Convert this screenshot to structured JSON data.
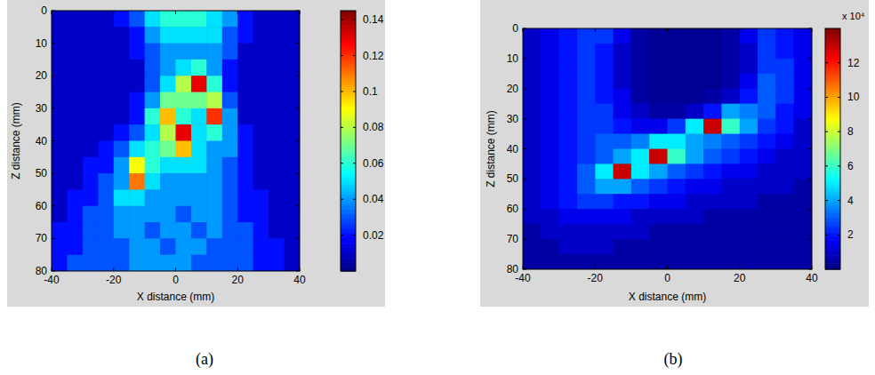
{
  "chart_data": [
    {
      "type": "heatmap",
      "title": "(a)",
      "xlabel": "X distance (mm)",
      "ylabel": "Z distance (mm)",
      "x": [
        -37.5,
        -32.5,
        -27.5,
        -22.5,
        -17.5,
        -12.5,
        -7.5,
        -2.5,
        2.5,
        7.5,
        12.5,
        17.5,
        22.5,
        27.5,
        32.5,
        37.5
      ],
      "y": [
        2.5,
        7.5,
        12.5,
        17.5,
        22.5,
        27.5,
        32.5,
        37.5,
        42.5,
        47.5,
        52.5,
        57.5,
        62.5,
        67.5,
        72.5,
        77.5
      ],
      "values": [
        [
          0.01,
          0.01,
          0.01,
          0.01,
          0.02,
          0.03,
          0.05,
          0.06,
          0.06,
          0.06,
          0.05,
          0.04,
          0.02,
          0.01,
          0.01,
          0.01
        ],
        [
          0.01,
          0.01,
          0.01,
          0.01,
          0.01,
          0.02,
          0.04,
          0.05,
          0.05,
          0.05,
          0.05,
          0.03,
          0.02,
          0.01,
          0.01,
          0.01
        ],
        [
          0.01,
          0.01,
          0.01,
          0.01,
          0.01,
          0.02,
          0.03,
          0.04,
          0.04,
          0.04,
          0.04,
          0.03,
          0.01,
          0.01,
          0.01,
          0.01
        ],
        [
          0.01,
          0.01,
          0.01,
          0.01,
          0.01,
          0.01,
          0.03,
          0.04,
          0.05,
          0.06,
          0.04,
          0.02,
          0.01,
          0.01,
          0.01,
          0.01
        ],
        [
          0.01,
          0.01,
          0.01,
          0.01,
          0.01,
          0.01,
          0.03,
          0.05,
          0.08,
          0.13,
          0.06,
          0.02,
          0.01,
          0.01,
          0.01,
          0.01
        ],
        [
          0.01,
          0.01,
          0.01,
          0.01,
          0.01,
          0.02,
          0.04,
          0.07,
          0.07,
          0.07,
          0.08,
          0.03,
          0.01,
          0.01,
          0.01,
          0.01
        ],
        [
          0.01,
          0.01,
          0.01,
          0.01,
          0.01,
          0.02,
          0.06,
          0.1,
          0.06,
          0.05,
          0.12,
          0.04,
          0.01,
          0.01,
          0.01,
          0.01
        ],
        [
          0.01,
          0.01,
          0.01,
          0.01,
          0.02,
          0.03,
          0.05,
          0.08,
          0.13,
          0.05,
          0.06,
          0.04,
          0.02,
          0.01,
          0.01,
          0.01
        ],
        [
          0.01,
          0.01,
          0.01,
          0.02,
          0.03,
          0.05,
          0.06,
          0.07,
          0.1,
          0.05,
          0.04,
          0.04,
          0.02,
          0.01,
          0.01,
          0.01
        ],
        [
          0.01,
          0.01,
          0.02,
          0.02,
          0.04,
          0.09,
          0.06,
          0.05,
          0.05,
          0.05,
          0.04,
          0.03,
          0.02,
          0.01,
          0.01,
          0.01
        ],
        [
          0.01,
          0.01,
          0.02,
          0.03,
          0.04,
          0.11,
          0.05,
          0.04,
          0.04,
          0.04,
          0.04,
          0.03,
          0.02,
          0.01,
          0.01,
          0.01
        ],
        [
          0.01,
          0.02,
          0.02,
          0.03,
          0.05,
          0.05,
          0.04,
          0.04,
          0.04,
          0.04,
          0.04,
          0.03,
          0.02,
          0.02,
          0.01,
          0.01
        ],
        [
          0.01,
          0.02,
          0.03,
          0.03,
          0.04,
          0.04,
          0.04,
          0.04,
          0.03,
          0.04,
          0.04,
          0.03,
          0.02,
          0.02,
          0.01,
          0.01
        ],
        [
          0.02,
          0.02,
          0.03,
          0.03,
          0.04,
          0.04,
          0.03,
          0.04,
          0.04,
          0.03,
          0.04,
          0.03,
          0.03,
          0.02,
          0.01,
          0.01
        ],
        [
          0.02,
          0.02,
          0.03,
          0.03,
          0.03,
          0.04,
          0.04,
          0.03,
          0.04,
          0.04,
          0.03,
          0.03,
          0.03,
          0.02,
          0.02,
          0.01
        ],
        [
          0.02,
          0.03,
          0.03,
          0.03,
          0.03,
          0.04,
          0.04,
          0.04,
          0.04,
          0.03,
          0.03,
          0.03,
          0.03,
          0.02,
          0.02,
          0.01
        ]
      ],
      "xlim": [
        -40,
        40
      ],
      "ylim": [
        0,
        80
      ],
      "xticks": [
        -40,
        -20,
        0,
        20,
        40
      ],
      "yticks": [
        0,
        10,
        20,
        30,
        40,
        50,
        60,
        70,
        80
      ],
      "colorbar": {
        "lim": [
          0,
          0.145
        ],
        "ticks": [
          0.02,
          0.04,
          0.06,
          0.08,
          0.1,
          0.12,
          0.14
        ]
      }
    },
    {
      "type": "heatmap",
      "title": "(b)",
      "xlabel": "X distance (mm)",
      "ylabel": "Z distance (mm)",
      "x": [
        -37.5,
        -32.5,
        -27.5,
        -22.5,
        -17.5,
        -12.5,
        -7.5,
        -2.5,
        2.5,
        7.5,
        12.5,
        17.5,
        22.5,
        27.5,
        32.5,
        37.5
      ],
      "y": [
        2.5,
        7.5,
        12.5,
        17.5,
        22.5,
        27.5,
        32.5,
        37.5,
        42.5,
        47.5,
        52.5,
        57.5,
        62.5,
        67.5,
        72.5,
        77.5
      ],
      "values": [
        [
          1,
          1.5,
          2,
          2.5,
          2.5,
          1.5,
          0.5,
          0.3,
          0.3,
          0.3,
          0.3,
          0.5,
          1.5,
          2.5,
          2,
          1.5
        ],
        [
          1,
          1.5,
          2,
          2.5,
          2,
          1,
          0.5,
          0.3,
          0.3,
          0.3,
          0.3,
          0.5,
          1,
          2.5,
          2,
          1.5
        ],
        [
          1,
          1.5,
          2,
          2.5,
          2,
          1,
          0.5,
          0.3,
          0.3,
          0.3,
          0.3,
          0.5,
          1,
          2.5,
          2.5,
          1.5
        ],
        [
          1,
          1.5,
          2,
          2.5,
          2,
          1,
          0.5,
          0.3,
          0.3,
          0.3,
          0.3,
          0.5,
          1.5,
          3,
          2.5,
          1.5
        ],
        [
          1,
          1.5,
          2,
          2.5,
          2,
          1.5,
          0.5,
          0.3,
          0.3,
          0.3,
          0.5,
          1,
          2,
          3,
          2.5,
          1.5
        ],
        [
          1,
          1.5,
          2,
          2.5,
          2.5,
          1.5,
          1,
          0.5,
          0.5,
          1,
          2,
          4,
          3.5,
          3,
          2,
          1.5
        ],
        [
          1,
          1.5,
          2,
          2.5,
          2.5,
          2,
          1.5,
          1.5,
          2.5,
          5,
          13,
          6,
          4,
          2.5,
          2,
          1
        ],
        [
          1,
          1.5,
          2,
          2.5,
          3,
          3,
          3.5,
          5,
          5,
          4,
          3.5,
          3,
          2.5,
          2,
          1.5,
          1
        ],
        [
          1,
          1.5,
          2,
          2.5,
          3,
          4,
          5,
          13,
          6,
          4,
          3,
          2.5,
          2,
          1.5,
          1,
          1
        ],
        [
          1,
          1.5,
          2,
          3,
          5,
          13,
          5,
          4,
          3,
          2.5,
          2,
          1.5,
          1.5,
          1,
          1,
          1
        ],
        [
          1,
          1.5,
          2,
          3,
          4,
          4,
          3,
          2.5,
          2,
          1.5,
          1.5,
          1,
          1,
          1,
          1,
          0.5
        ],
        [
          1,
          1.5,
          2,
          2.5,
          2.5,
          2,
          2,
          1.5,
          1.5,
          1,
          1,
          1,
          1,
          0.5,
          0.5,
          0.5
        ],
        [
          1,
          1,
          1.5,
          1.5,
          1.5,
          1.5,
          1,
          1,
          1,
          1,
          0.5,
          0.5,
          0.5,
          0.5,
          0.5,
          0.5
        ],
        [
          0.5,
          1,
          1,
          1,
          1,
          1,
          1,
          0.5,
          0.5,
          0.5,
          0.5,
          0.5,
          0.5,
          0.5,
          0.5,
          0.5
        ],
        [
          0.5,
          0.5,
          1,
          1,
          1,
          0.5,
          0.5,
          0.5,
          0.5,
          0.5,
          0.5,
          0.5,
          0.5,
          0.5,
          0.5,
          0.5
        ],
        [
          0.5,
          0.5,
          0.5,
          0.5,
          0.5,
          0.5,
          0.5,
          0.5,
          0.5,
          0.5,
          0.5,
          0.5,
          0.5,
          0.5,
          0.5,
          0.5
        ]
      ],
      "xlim": [
        -40,
        40
      ],
      "ylim": [
        0,
        80
      ],
      "xticks": [
        -40,
        -20,
        0,
        20,
        40
      ],
      "yticks": [
        0,
        10,
        20,
        30,
        40,
        50,
        60,
        70,
        80
      ],
      "colorbar": {
        "lim": [
          0,
          14
        ],
        "ticks": [
          2,
          4,
          6,
          8,
          10,
          12
        ],
        "label": "x 10⁴"
      }
    }
  ]
}
